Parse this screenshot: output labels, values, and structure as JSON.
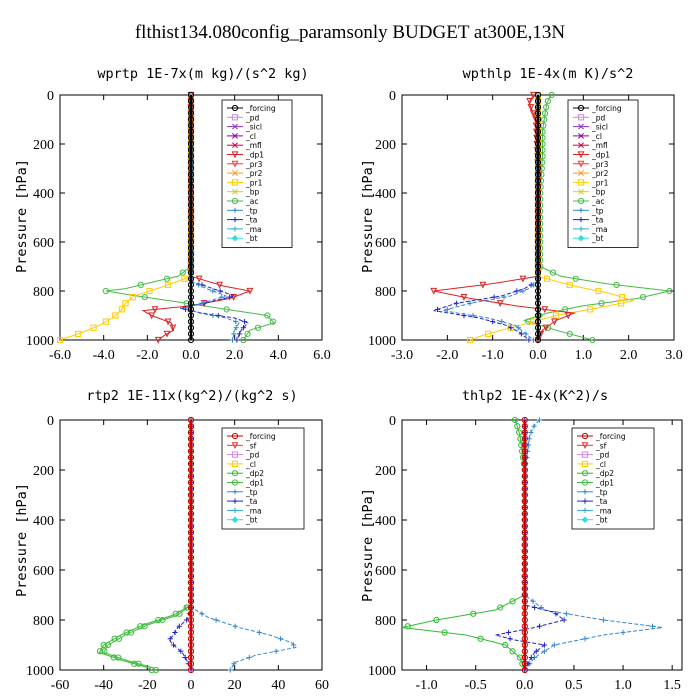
{
  "figure_title": "flthist134.080config_paramsonly  BUDGET at300E,13N",
  "colors": {
    "forcing": "#000000",
    "pd": "#cc88dd",
    "sicl": "#8833cc",
    "cl": "#880099",
    "mfl": "#cc0044",
    "dp1": "#dd2222",
    "pr3": "#ff3333",
    "pr2": "#ff9922",
    "pr1": "#ffcc00",
    "bp": "#cccc33",
    "ac": "#44bb44",
    "tp": "#3388cc",
    "ta": "#2222cc",
    "ma": "#33aacc",
    "bt": "#33dddd",
    "sf": "#ee3333",
    "dp2": "#33bb33",
    "red_forcing": "#cc0000"
  },
  "chart_data": [
    {
      "type": "line",
      "title": "wprtp  1E-7x(m kg)/(s^2 kg)",
      "ylabel": "Pressure [hPa]",
      "xlim": [
        -6,
        6
      ],
      "ylim": [
        1000,
        0
      ],
      "xticks": [
        "-6.0",
        "-4.0",
        "-2.0",
        "0.0",
        "2.0",
        "4.0",
        "6.0"
      ],
      "xtick_values": [
        -6,
        -4,
        -2,
        0,
        2,
        4,
        6
      ],
      "yticks": [
        "0",
        "200",
        "400",
        "600",
        "800",
        "1000"
      ],
      "ytick_values": [
        0,
        200,
        400,
        600,
        800,
        1000
      ],
      "legend": [
        "_forcing",
        "_pd",
        "_sicl",
        "_cl",
        "_mfl",
        "_dp1",
        "_pr3",
        "_pr2",
        "_pr1",
        "_bp",
        "_ac",
        "_tp",
        "_ta",
        "_ma",
        "_bt"
      ],
      "legend_colors": [
        "forcing",
        "pd",
        "sicl",
        "cl",
        "mfl",
        "dp1",
        "pr3",
        "pr2",
        "pr1",
        "bp",
        "ac",
        "tp",
        "ta",
        "ma",
        "bt"
      ],
      "series": [
        {
          "key": "ac",
          "p": [
            0,
            700,
            740,
            760,
            790,
            800,
            820,
            850,
            880,
            900,
            930,
            960,
            1000
          ],
          "x": [
            0,
            0,
            -0.6,
            -1.6,
            -3.0,
            -3.9,
            -2.5,
            -0.2,
            2.0,
            3.5,
            3.8,
            2.7,
            2.4
          ]
        },
        {
          "key": "pr1",
          "p": [
            0,
            740,
            780,
            820,
            850,
            880,
            910,
            940,
            970,
            1000
          ],
          "x": [
            0,
            0,
            -1.2,
            -2.6,
            -3.0,
            -3.2,
            -3.6,
            -4.2,
            -5.0,
            -6.0
          ]
        },
        {
          "key": "dp1",
          "p": [
            0,
            740,
            780,
            800,
            830,
            860,
            880,
            900,
            930,
            960,
            980,
            1000
          ],
          "x": [
            0,
            0,
            1.5,
            2.7,
            1.8,
            0,
            -2.2,
            -1.8,
            -0.9,
            -0.8,
            -1.2,
            -1.5
          ]
        },
        {
          "key": "ta",
          "p": [
            0,
            760,
            790,
            820,
            850,
            870,
            890,
            910,
            930,
            960,
            1000
          ],
          "x": [
            0,
            0,
            1.0,
            2.0,
            0.6,
            -0.5,
            0.5,
            2.0,
            2.6,
            2.3,
            2.1
          ]
        },
        {
          "key": "tp",
          "p": [
            0,
            760,
            790,
            820,
            850,
            870,
            890,
            910,
            930,
            960,
            1000
          ],
          "x": [
            0,
            0,
            0.7,
            1.6,
            0.5,
            -0.3,
            0.4,
            1.6,
            2.2,
            2.0,
            1.9
          ]
        },
        {
          "key": "forcing",
          "p": [
            0,
            1000
          ],
          "x": [
            0,
            0
          ]
        }
      ]
    },
    {
      "type": "line",
      "title": "wpthlp  1E-4x(m K)/s^2",
      "ylabel": "Pressure [hPa]",
      "xlim": [
        -3,
        3
      ],
      "ylim": [
        1000,
        0
      ],
      "xticks": [
        "-3.0",
        "-2.0",
        "-1.0",
        "0.0",
        "1.0",
        "2.0",
        "3.0"
      ],
      "xtick_values": [
        -3,
        -2,
        -1,
        0,
        1,
        2,
        3
      ],
      "yticks": [
        "0",
        "200",
        "400",
        "600",
        "800",
        "1000"
      ],
      "ytick_values": [
        0,
        200,
        400,
        600,
        800,
        1000
      ],
      "legend": [
        "_forcing",
        "_pd",
        "_sicl",
        "_cl",
        "_mfl",
        "_dp1",
        "_pr3",
        "_pr2",
        "_pr1",
        "_bp",
        "_ac",
        "_tp",
        "_ta",
        "_ma",
        "_bt"
      ],
      "legend_colors": [
        "forcing",
        "pd",
        "sicl",
        "cl",
        "mfl",
        "dp1",
        "pr3",
        "pr2",
        "pr1",
        "bp",
        "ac",
        "tp",
        "ta",
        "ma",
        "bt"
      ],
      "series": [
        {
          "key": "ac",
          "p": [
            0,
            30,
            80,
            150,
            250,
            400,
            600,
            700,
            740,
            770,
            800,
            830,
            860,
            890,
            920,
            960,
            1000
          ],
          "x": [
            0.3,
            0.2,
            0.15,
            0.1,
            0.1,
            0.05,
            0.05,
            0.05,
            0.5,
            1.5,
            2.9,
            2.2,
            1.0,
            0.2,
            -0.3,
            0.4,
            1.2
          ]
        },
        {
          "key": "pr1",
          "p": [
            0,
            740,
            780,
            810,
            840,
            870,
            900,
            940,
            980,
            1000
          ],
          "x": [
            0,
            0,
            0.8,
            1.6,
            2.1,
            1.3,
            0.4,
            -0.4,
            -1.2,
            -1.5
          ]
        },
        {
          "key": "dp1",
          "p": [
            0,
            30,
            100,
            300,
            600,
            740,
            770,
            800,
            830,
            860,
            890,
            920,
            960,
            1000
          ],
          "x": [
            -0.1,
            -0.2,
            -0.05,
            0,
            0,
            0,
            -1.0,
            -2.3,
            -1.5,
            -0.5,
            0.8,
            0.4,
            0.1,
            0
          ]
        },
        {
          "key": "ta",
          "p": [
            0,
            760,
            790,
            820,
            850,
            880,
            910,
            940,
            970,
            1000
          ],
          "x": [
            0,
            0,
            -0.3,
            -0.8,
            -1.8,
            -2.3,
            -1.3,
            -0.7,
            -0.4,
            -0.2
          ]
        },
        {
          "key": "tp",
          "p": [
            0,
            760,
            790,
            820,
            850,
            880,
            910,
            940,
            970,
            1000
          ],
          "x": [
            0,
            0,
            -0.2,
            -0.6,
            -1.5,
            -2.1,
            -1.1,
            -0.5,
            -0.3,
            -0.1
          ]
        },
        {
          "key": "forcing",
          "p": [
            0,
            1000
          ],
          "x": [
            0,
            0
          ]
        }
      ]
    },
    {
      "type": "line",
      "title": "rtp2  1E-11x(kg^2)/(kg^2 s)",
      "ylabel": "Pressure [hPa]",
      "xlim": [
        -60,
        60
      ],
      "ylim": [
        1000,
        0
      ],
      "xticks": [
        "-60",
        "-40",
        "-20",
        "0",
        "20",
        "40",
        "60"
      ],
      "xtick_values": [
        -60,
        -40,
        -20,
        0,
        20,
        40,
        60
      ],
      "yticks": [
        "0",
        "200",
        "400",
        "600",
        "800",
        "1000"
      ],
      "ytick_values": [
        0,
        200,
        400,
        600,
        800,
        1000
      ],
      "legend": [
        "_forcing",
        "_sf",
        "_pd",
        "_cl",
        "_dp2",
        "_dp1",
        "_tp",
        "_ta",
        "_ma",
        "_bt"
      ],
      "legend_colors": [
        "red_forcing",
        "sf",
        "pd",
        "pr1",
        "dp2",
        "ac",
        "tp",
        "ta",
        "ma",
        "bt"
      ],
      "series": [
        {
          "key": "dp2",
          "p": [
            0,
            740,
            780,
            820,
            860,
            900,
            930,
            960,
            990,
            1000
          ],
          "x": [
            0,
            0,
            -8,
            -22,
            -32,
            -40,
            -42,
            -32,
            -20,
            -18
          ]
        },
        {
          "key": "ac",
          "p": [
            0,
            740,
            780,
            820,
            860,
            900,
            930,
            960,
            990,
            1000
          ],
          "x": [
            0,
            0,
            -6,
            -20,
            -30,
            -38,
            -40,
            -30,
            -18,
            -16
          ]
        },
        {
          "key": "tp",
          "p": [
            0,
            750,
            790,
            830,
            860,
            890,
            910,
            940,
            970,
            1000
          ],
          "x": [
            0,
            0,
            8,
            22,
            36,
            46,
            48,
            30,
            20,
            18
          ]
        },
        {
          "key": "ta",
          "p": [
            0,
            760,
            800,
            830,
            860,
            880,
            900,
            930,
            960,
            1000
          ],
          "x": [
            0,
            0,
            -2,
            -6,
            -8,
            -10,
            -8,
            -4,
            -2,
            0
          ]
        },
        {
          "key": "red_forcing",
          "p": [
            0,
            1000
          ],
          "x": [
            0,
            0
          ]
        }
      ]
    },
    {
      "type": "line",
      "title": "thlp2  1E-4x(K^2)/s",
      "ylabel": "Pressure [hPa]",
      "xlim": [
        -1.25,
        1.6
      ],
      "ylim": [
        1000,
        0
      ],
      "xticks": [
        "-1.0",
        "-0.5",
        "0.0",
        "0.5",
        "1.0",
        "1.5"
      ],
      "xtick_values": [
        -1,
        -0.5,
        0,
        0.5,
        1,
        1.5
      ],
      "yticks": [
        "0",
        "200",
        "400",
        "600",
        "800",
        "1000"
      ],
      "ytick_values": [
        0,
        200,
        400,
        600,
        800,
        1000
      ],
      "legend": [
        "_forcing",
        "_sf",
        "_pd",
        "_cl",
        "_dp2",
        "_dp1",
        "_tp",
        "_ta",
        "_ma",
        "_bt"
      ],
      "legend_colors": [
        "red_forcing",
        "sf",
        "pd",
        "pr1",
        "dp2",
        "ac",
        "tp",
        "ta",
        "ma",
        "bt"
      ],
      "series": [
        {
          "key": "dp2",
          "p": [
            0,
            20,
            60,
            120,
            200,
            400,
            700,
            760,
            800,
            830,
            860,
            900,
            950,
            1000
          ],
          "x": [
            -0.1,
            -0.08,
            -0.05,
            -0.03,
            0,
            0,
            0,
            -0.3,
            -0.9,
            -1.25,
            -0.6,
            -0.2,
            -0.05,
            0
          ]
        },
        {
          "key": "tp",
          "p": [
            0,
            20,
            60,
            120,
            200,
            400,
            700,
            760,
            800,
            830,
            860,
            900,
            950,
            1000
          ],
          "x": [
            0.15,
            0.1,
            0.05,
            0.03,
            0,
            0,
            0,
            0.2,
            0.8,
            1.4,
            0.8,
            0.3,
            0.1,
            0
          ]
        },
        {
          "key": "ta",
          "p": [
            0,
            740,
            770,
            800,
            830,
            860,
            880,
            900,
            930,
            960,
            1000
          ],
          "x": [
            0,
            0,
            0.3,
            0.4,
            0.1,
            -0.3,
            -0.1,
            0.2,
            0.1,
            0.05,
            0
          ]
        },
        {
          "key": "red_forcing",
          "p": [
            0,
            1000
          ],
          "x": [
            0,
            0
          ]
        }
      ]
    }
  ]
}
